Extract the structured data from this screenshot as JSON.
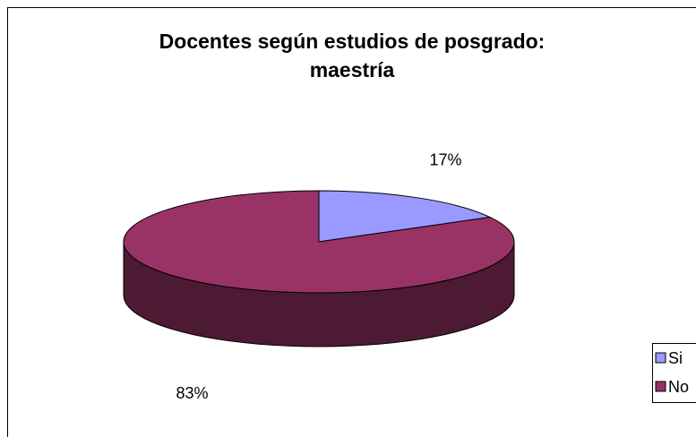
{
  "chart_data": {
    "type": "pie",
    "title": "Docentes según estudios de posgrado: maestría",
    "categories": [
      "Si",
      "No"
    ],
    "values": [
      17,
      83
    ],
    "value_labels": [
      "17%",
      "83%"
    ],
    "colors": [
      "#9999ff",
      "#993366"
    ],
    "legend": "right",
    "three_d": true
  }
}
